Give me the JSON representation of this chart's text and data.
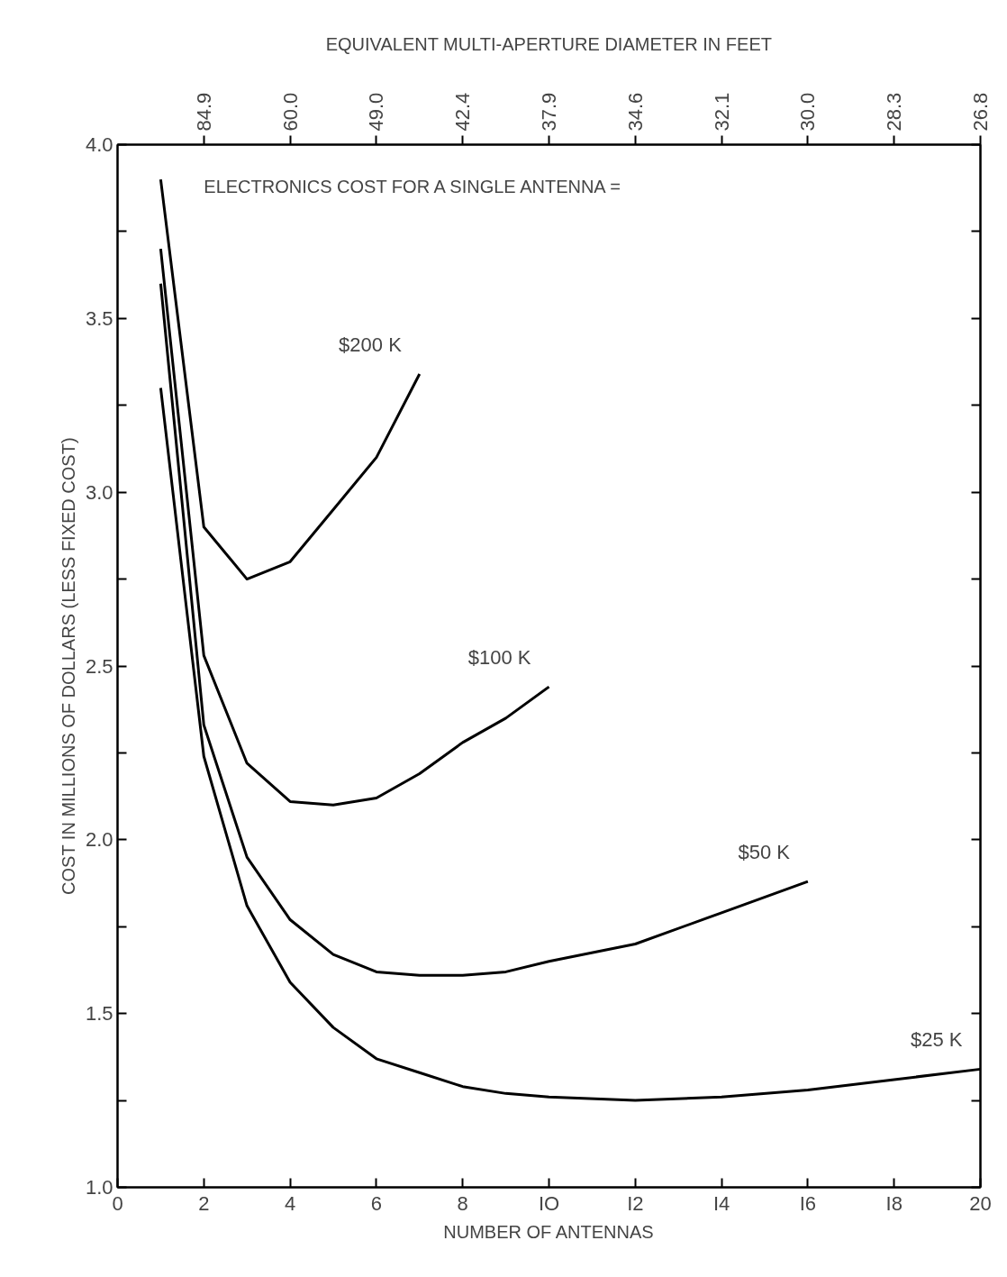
{
  "chart_data": {
    "type": "line",
    "xlabel": "NUMBER OF ANTENNAS",
    "ylabel": "COST IN MILLIONS OF DOLLARS (LESS FIXED COST)",
    "x2label": "EQUIVALENT MULTI-APERTURE DIAMETER IN FEET",
    "xlim": [
      0,
      20
    ],
    "ylim": [
      1.0,
      4.0
    ],
    "xticks": [
      0,
      2,
      4,
      6,
      8,
      {
        "value": 10,
        "label": "IO"
      },
      {
        "value": 12,
        "label": "I2"
      },
      {
        "value": 14,
        "label": "I4"
      },
      {
        "value": 16,
        "label": "I6"
      },
      {
        "value": 18,
        "label": "I8"
      },
      20
    ],
    "yticks": [
      {
        "value": 1.0,
        "label": "1.0"
      },
      {
        "value": 1.25,
        "label": null
      },
      1.5,
      {
        "value": 1.75,
        "label": null
      },
      {
        "value": 2.0,
        "label": "2.0"
      },
      {
        "value": 2.25,
        "label": null
      },
      2.5,
      {
        "value": 2.75,
        "label": null
      },
      {
        "value": 3.0,
        "label": "3.0"
      },
      {
        "value": 3.25,
        "label": null
      },
      3.5,
      {
        "value": 3.75,
        "label": null
      },
      {
        "value": 4.0,
        "label": "4.0"
      }
    ],
    "grid": false,
    "marker": "none",
    "line_style": "solid",
    "series": [
      {
        "name": "$200 K",
        "color": "#000000",
        "x": [
          1,
          2,
          3,
          4,
          5,
          6,
          7
        ],
        "values": [
          3.9,
          2.9,
          2.75,
          2.8,
          2.95,
          3.1,
          3.34
        ]
      },
      {
        "name": "$100 K",
        "color": "#000000",
        "x": [
          1,
          2,
          3,
          4,
          5,
          6,
          7,
          8,
          9,
          10
        ],
        "values": [
          3.7,
          2.53,
          2.22,
          2.11,
          2.1,
          2.12,
          2.19,
          2.28,
          2.35,
          2.44
        ]
      },
      {
        "name": "$50 K",
        "color": "#000000",
        "x": [
          1,
          2,
          3,
          4,
          5,
          6,
          7,
          8,
          9,
          10,
          12,
          14,
          16
        ],
        "values": [
          3.6,
          2.33,
          1.95,
          1.77,
          1.67,
          1.62,
          1.61,
          1.61,
          1.62,
          1.65,
          1.7,
          1.79,
          1.88
        ]
      },
      {
        "name": "$25 K",
        "color": "#000000",
        "x": [
          1,
          2,
          3,
          4,
          5,
          6,
          7,
          8,
          9,
          10,
          12,
          14,
          16,
          18,
          20
        ],
        "values": [
          3.3,
          2.24,
          1.81,
          1.59,
          1.46,
          1.37,
          1.33,
          1.29,
          1.27,
          1.26,
          1.25,
          1.26,
          1.28,
          1.31,
          1.34
        ]
      }
    ],
    "annotations": [
      "ELECTRONICS COST FOR A SINGLE ANTENNA =",
      "84.9",
      "60.0",
      "49.0",
      "42.4",
      "37.9",
      "34.6",
      "32.1",
      "30.0",
      "28.3",
      "26.8"
    ]
  }
}
